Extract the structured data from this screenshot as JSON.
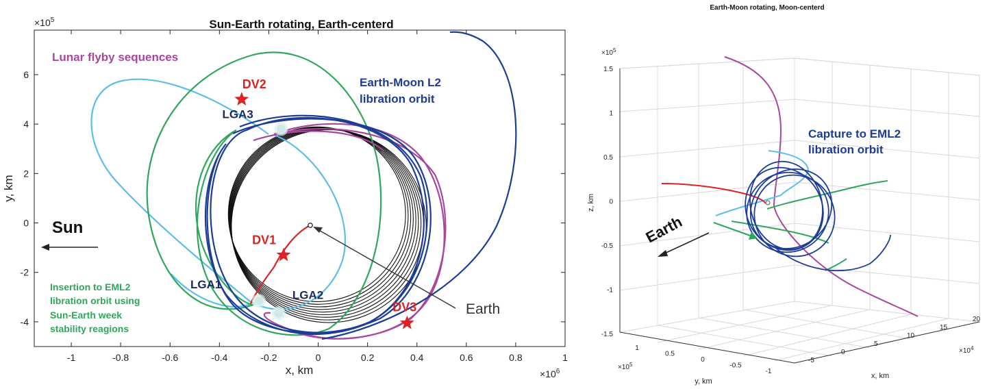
{
  "chart_data": [
    {
      "type": "line",
      "title": "Sun-Earth rotating, Earth-centerd",
      "xlabel": "x, km",
      "ylabel": "y, km",
      "x_exponent": "×10^6",
      "y_exponent": "×10^5",
      "xlim": [
        -1.15,
        1.0
      ],
      "ylim": [
        -5.0,
        7.8
      ],
      "x_ticks": [
        "-1",
        "-0.8",
        "-0.6",
        "-0.4",
        "-0.2",
        "0",
        "0.2",
        "0.4",
        "0.6",
        "0.8",
        "1"
      ],
      "y_ticks": [
        "-4",
        "-2",
        "0",
        "2",
        "4",
        "6"
      ],
      "grid": false,
      "series_colors": {
        "earth_transfer": "#dd2222",
        "lunar_flyby_light": "#5bbde8",
        "insertion_green": "#2fa65a",
        "lunar_flyby_magenta": "#a8479c",
        "eml2_orbit": "#1c3c96",
        "lunar_orbit": "#111111"
      },
      "points": [
        {
          "label": "LGA1",
          "x": -0.24,
          "y": -3.15
        },
        {
          "label": "LGA2",
          "x": -0.16,
          "y": -3.65
        },
        {
          "label": "LGA3",
          "x": -0.15,
          "y": 3.8
        }
      ],
      "maneuvers": [
        {
          "label": "DV1",
          "x": -0.14,
          "y": -1.3
        },
        {
          "label": "DV2",
          "x": -0.31,
          "y": 5.0
        },
        {
          "label": "DV3",
          "x": 0.36,
          "y": -4.05
        }
      ],
      "annotations": {
        "lunar_flyby": "Lunar flyby sequences",
        "eml2_line1": "Earth-Moon L2",
        "eml2_line2": "libration orbit",
        "sun": "Sun",
        "earth": "Earth",
        "insertion_line1": "Insertion to EML2",
        "insertion_line2": "libration orbit using",
        "insertion_line3": "Sun-Earth week",
        "insertion_line4": "stability reagions"
      }
    },
    {
      "type": "line",
      "title": "Earth-Moon rotating, Moon-centerd",
      "xlabel": "x, km",
      "ylabel": "y, km",
      "zlabel": "z, km",
      "x_exponent": "×10^4",
      "y_exponent": "×10^5",
      "z_exponent": "×10^5",
      "z_ticks": [
        "-1.5",
        "-1",
        "-0.5",
        "0",
        "0.5",
        "1",
        "1.5"
      ],
      "x_ticks": [
        "-5",
        "0",
        "5",
        "10",
        "15",
        "20"
      ],
      "y_ticks": [
        "1",
        "0.5",
        "0",
        "-0.5",
        "-1"
      ],
      "grid": true,
      "annotations": {
        "capture_line1": "Capture to EML2",
        "capture_line2": "libration orbit",
        "earth": "Earth"
      }
    }
  ]
}
